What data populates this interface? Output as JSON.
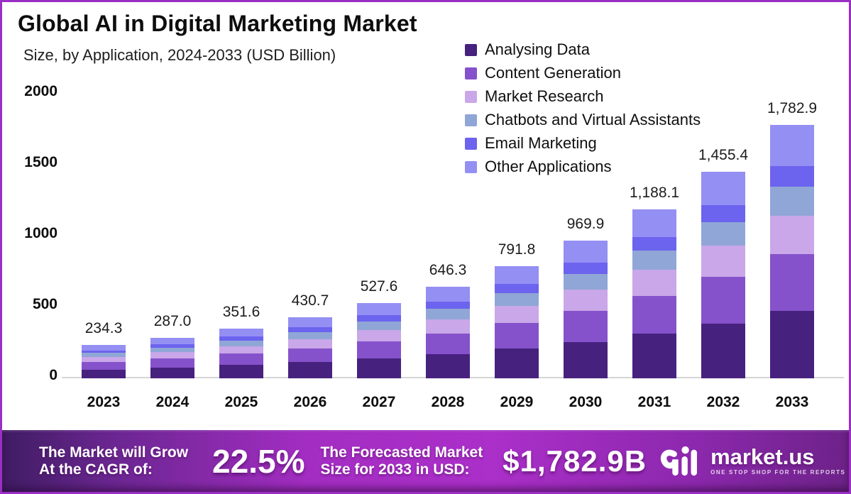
{
  "frame": {
    "border_color": "#9a2fc4",
    "background": "#ffffff"
  },
  "header": {
    "title": "Global AI in Digital Marketing Market",
    "subtitle": "Size, by Application, 2024-2033 (USD Billion)"
  },
  "chart_data": {
    "type": "bar",
    "stacked": true,
    "title": "Global AI in Digital Marketing Market",
    "subtitle": "Size, by Application, 2024-2033 (USD Billion)",
    "unit": "USD Billion",
    "categories": [
      "2023",
      "2024",
      "2025",
      "2026",
      "2027",
      "2028",
      "2029",
      "2030",
      "2031",
      "2032",
      "2033"
    ],
    "series": [
      {
        "name": "Analysing Data",
        "color": "#46217e",
        "values": [
          62.1,
          76.1,
          93.2,
          114.1,
          139.8,
          171.3,
          209.8,
          257.0,
          314.8,
          385.7,
          472.5
        ]
      },
      {
        "name": "Content Generation",
        "color": "#8552cb",
        "values": [
          52.7,
          64.6,
          79.1,
          96.9,
          118.7,
          145.4,
          178.2,
          218.2,
          267.3,
          327.5,
          401.2
        ]
      },
      {
        "name": "Market Research",
        "color": "#c9a7e8",
        "values": [
          35.6,
          43.6,
          53.4,
          65.5,
          80.2,
          98.2,
          120.4,
          147.4,
          180.6,
          221.2,
          271.0
        ]
      },
      {
        "name": "Chatbots and Virtual Assistants",
        "color": "#8fa6d6",
        "values": [
          26.9,
          33.0,
          40.4,
          49.5,
          60.7,
          74.3,
          91.1,
          111.5,
          136.6,
          167.4,
          205.0
        ]
      },
      {
        "name": "Email Marketing",
        "color": "#6c63ee",
        "values": [
          19.2,
          23.5,
          28.8,
          35.3,
          43.3,
          53.0,
          64.9,
          79.5,
          97.4,
          119.3,
          146.2
        ]
      },
      {
        "name": "Other Applications",
        "color": "#948ff3",
        "values": [
          37.7,
          46.2,
          56.6,
          69.3,
          84.9,
          104.1,
          127.5,
          156.2,
          191.3,
          234.3,
          287.0
        ]
      }
    ],
    "totals": [
      234.3,
      287.0,
      351.6,
      430.7,
      527.6,
      646.3,
      791.8,
      969.9,
      1188.1,
      1455.4,
      1782.9
    ],
    "total_labels": [
      "234.3",
      "287.0",
      "351.6",
      "430.7",
      "527.6",
      "646.3",
      "791.8",
      "969.9",
      "1,188.1",
      "1,455.4",
      "1,782.9"
    ],
    "yticks": [
      0,
      500,
      1000,
      1500,
      2000
    ],
    "ytick_labels": [
      "0",
      "500",
      "1000",
      "1500",
      "2000"
    ],
    "ylim": [
      0,
      2000
    ],
    "xlabel": "",
    "ylabel": "",
    "grid": false,
    "legend_position": "top-right"
  },
  "banner": {
    "cagr_line1": "The Market will Grow",
    "cagr_line2": "At the CAGR of:",
    "cagr_value": "22.5%",
    "forecast_line1": "The Forecasted Market",
    "forecast_line2": "Size for 2033 in USD:",
    "forecast_value": "$1,782.9B",
    "brand": "market.us",
    "brand_tagline": "ONE STOP SHOP FOR THE REPORTS"
  }
}
